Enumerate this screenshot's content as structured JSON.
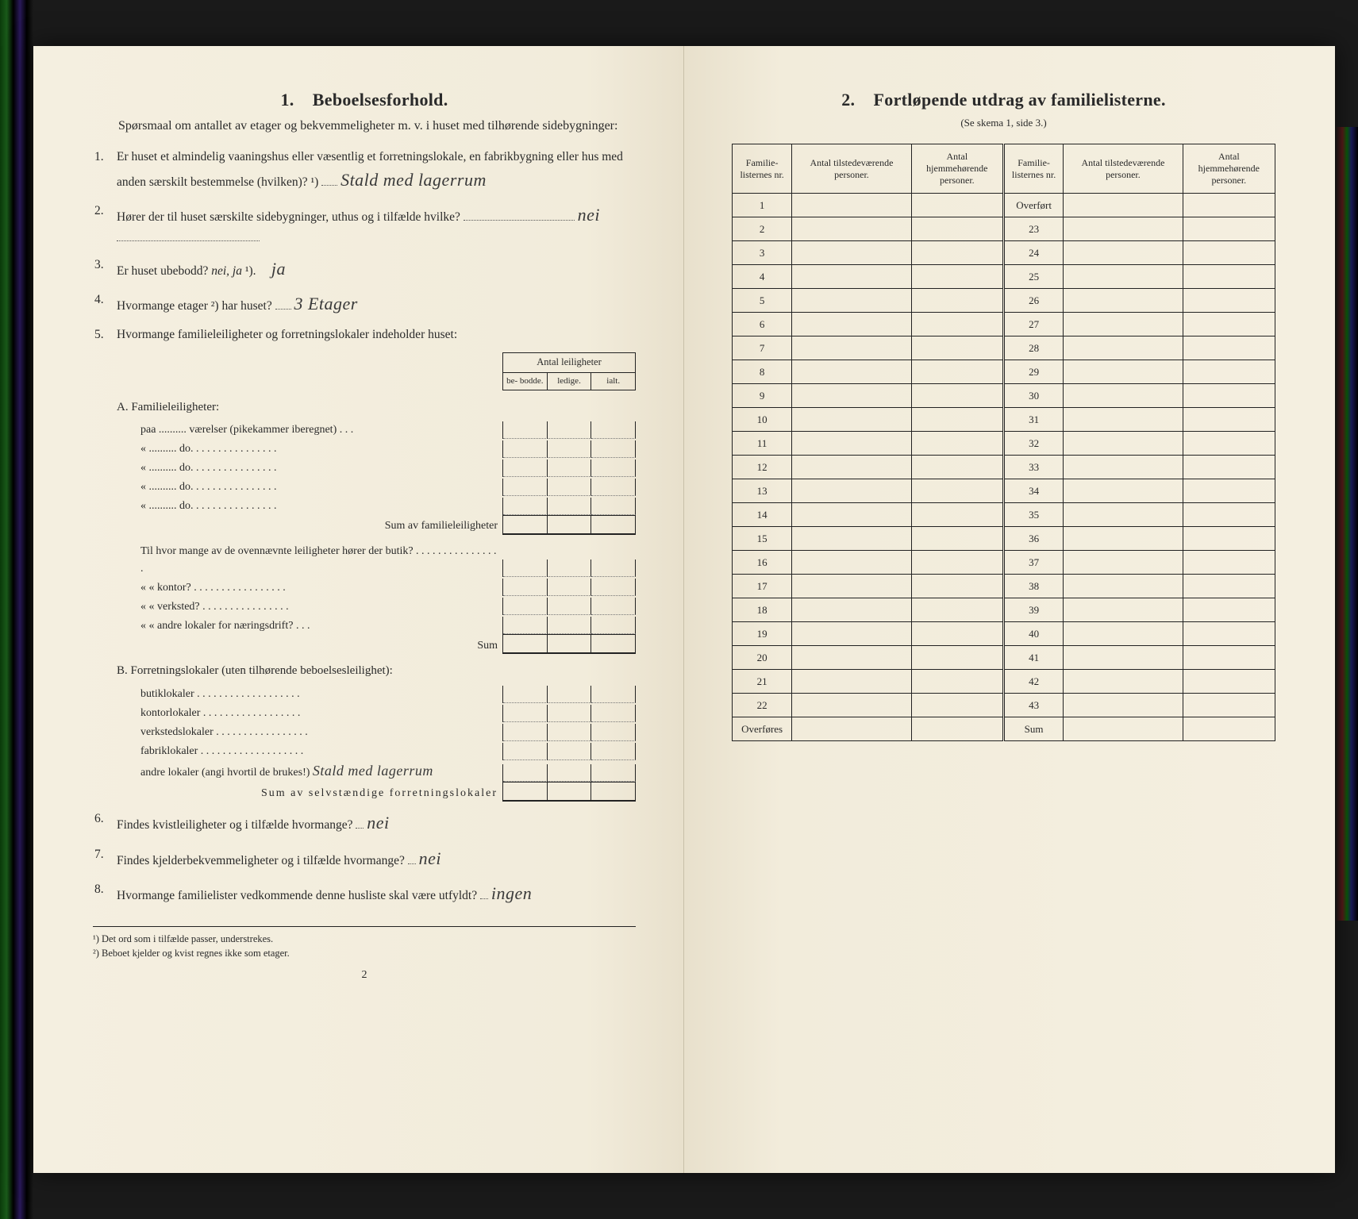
{
  "colors": {
    "paper": "#f4efe0",
    "ink": "#2a2a2a",
    "handwriting": "#3a3a3a",
    "rule": "#222222",
    "dotted": "#777777"
  },
  "left_page": {
    "section_number": "1.",
    "section_title": "Beboelsesforhold.",
    "intro": "Spørsmaal om antallet av etager og bekvemmeligheter m. v. i huset med tilhørende sidebygninger:",
    "q1": {
      "num": "1.",
      "text": "Er huset et almindelig vaaningshus eller væsentlig et forretningslokale, en fabrikbygning eller hus med anden særskilt bestemmelse (hvilken)?",
      "note_ref": "¹)",
      "answer_hand": "Stald med lagerrum"
    },
    "q2": {
      "num": "2.",
      "text": "Hører der til huset særskilte sidebygninger, uthus og i tilfælde hvilke?",
      "answer_hand": "nei"
    },
    "q3": {
      "num": "3.",
      "text_a": "Er huset ubebodd?",
      "text_b": "nei, ja",
      "note_ref": "¹).",
      "answer_hand": "ja"
    },
    "q4": {
      "num": "4.",
      "text": "Hvormange etager",
      "note_ref": "²)",
      "text_b": "har huset?",
      "answer_hand": "3 Etager"
    },
    "q5": {
      "num": "5.",
      "text": "Hvormange familieleiligheter og forretningslokaler indeholder huset:",
      "header_top": "Antal leiligheter",
      "header_cols": [
        "be-\nbodde.",
        "ledige.",
        "ialt."
      ],
      "A_title": "A. Familieleiligheter:",
      "A_rows": [
        "paa .......... værelser (pikekammer iberegnet) . . .",
        "«  ..........   do.   . . . . . . . . . . . . . . .",
        "«  ..........   do.   . . . . . . . . . . . . . . .",
        "«  ..........   do.   . . . . . . . . . . . . . . .",
        "«  ..........   do.   . . . . . . . . . . . . . . ."
      ],
      "A_sum": "Sum av familieleiligheter",
      "mid_rows": [
        "Til hvor mange av de ovennævnte leiligheter hører der butik? . . . . . . . . . . . . . . . .",
        "«   «  kontor? . . . . . . . . . . . . . . . . .",
        "«   «  verksted? . . . . . . . . . . . . . . . .",
        "«   «  andre lokaler for næringsdrift? . . ."
      ],
      "mid_sum": "Sum",
      "B_title": "B. Forretningslokaler (uten tilhørende beboelsesleilighet):",
      "B_rows": [
        "butiklokaler . . . . . . . . . . . . . . . . . . .",
        "kontorlokaler . . . . . . . . . . . . . . . . . .",
        "verkstedslokaler . . . . . . . . . . . . . . . . .",
        "fabriklokaler . . . . . . . . . . . . . . . . . . .",
        "andre lokaler (angi hvortil de brukes!)"
      ],
      "B_hand": "Stald med lagerrum",
      "B_sum": "Sum av selvstændige forretningslokaler"
    },
    "q6": {
      "num": "6.",
      "text": "Findes kvistleiligheter og i tilfælde hvormange?",
      "answer_hand": "nei"
    },
    "q7": {
      "num": "7.",
      "text": "Findes kjelderbekvemmeligheter og i tilfælde hvormange?",
      "answer_hand": "nei"
    },
    "q8": {
      "num": "8.",
      "text": "Hvormange familielister vedkommende denne husliste skal være utfyldt?",
      "answer_hand": "ingen"
    },
    "footnote1": "¹) Det ord som i tilfælde passer, understrekes.",
    "footnote2": "²) Beboet kjelder og kvist regnes ikke som etager.",
    "pagenum": "2"
  },
  "right_page": {
    "section_number": "2.",
    "section_title": "Fortløpende utdrag av familielisterne.",
    "subtitle": "(Se skema 1, side 3.)",
    "headers": {
      "col1": "Familie-\nlisternes\nnr.",
      "col2": "Antal\ntilstedeværende\npersoner.",
      "col3": "Antal\nhjemmehørende\npersoner.",
      "col4": "Familie-\nlisternes\nnr.",
      "col5": "Antal\ntilstedeværende\npersoner.",
      "col6": "Antal\nhjemmehørende\npersoner."
    },
    "left_col_labels": [
      "1",
      "2",
      "3",
      "4",
      "5",
      "6",
      "7",
      "8",
      "9",
      "10",
      "11",
      "12",
      "13",
      "14",
      "15",
      "16",
      "17",
      "18",
      "19",
      "20",
      "21",
      "22",
      "Overføres"
    ],
    "right_col_labels": [
      "Overført",
      "23",
      "24",
      "25",
      "26",
      "27",
      "28",
      "29",
      "30",
      "31",
      "32",
      "33",
      "34",
      "35",
      "36",
      "37",
      "38",
      "39",
      "40",
      "41",
      "42",
      "43",
      "Sum"
    ]
  }
}
